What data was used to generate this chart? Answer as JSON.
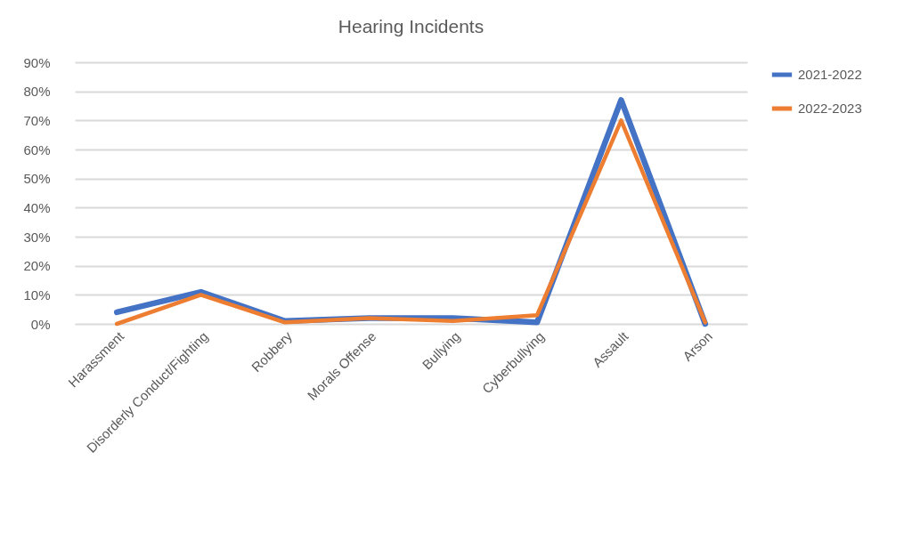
{
  "chart_data": {
    "type": "line",
    "title": "Hearing Incidents",
    "categories": [
      "Harassment",
      "Disorderly Conduct/Fighting",
      "Robbery",
      "Morals Offense",
      "Bullying",
      "Cyberbullying",
      "Assault",
      "Arson"
    ],
    "series": [
      {
        "name": "2021-2022",
        "color": "#4472c4",
        "values": [
          4,
          11,
          1,
          2,
          2,
          0.5,
          77,
          0
        ]
      },
      {
        "name": "2022-2023",
        "color": "#ed7d31",
        "values": [
          0,
          10,
          0.5,
          2,
          1,
          3,
          70,
          0.5
        ]
      }
    ],
    "ylim": [
      0,
      90
    ],
    "yticks": [
      {
        "value": 0,
        "label": "0%"
      },
      {
        "value": 10,
        "label": "10%"
      },
      {
        "value": 20,
        "label": "20%"
      },
      {
        "value": 30,
        "label": "30%"
      },
      {
        "value": 40,
        "label": "40%"
      },
      {
        "value": 50,
        "label": "50%"
      },
      {
        "value": 60,
        "label": "60%"
      },
      {
        "value": 70,
        "label": "70%"
      },
      {
        "value": 80,
        "label": "80%"
      },
      {
        "value": 90,
        "label": "90%"
      }
    ],
    "grid": "y",
    "legend": "right",
    "marker": "none",
    "line_style": "solid"
  }
}
